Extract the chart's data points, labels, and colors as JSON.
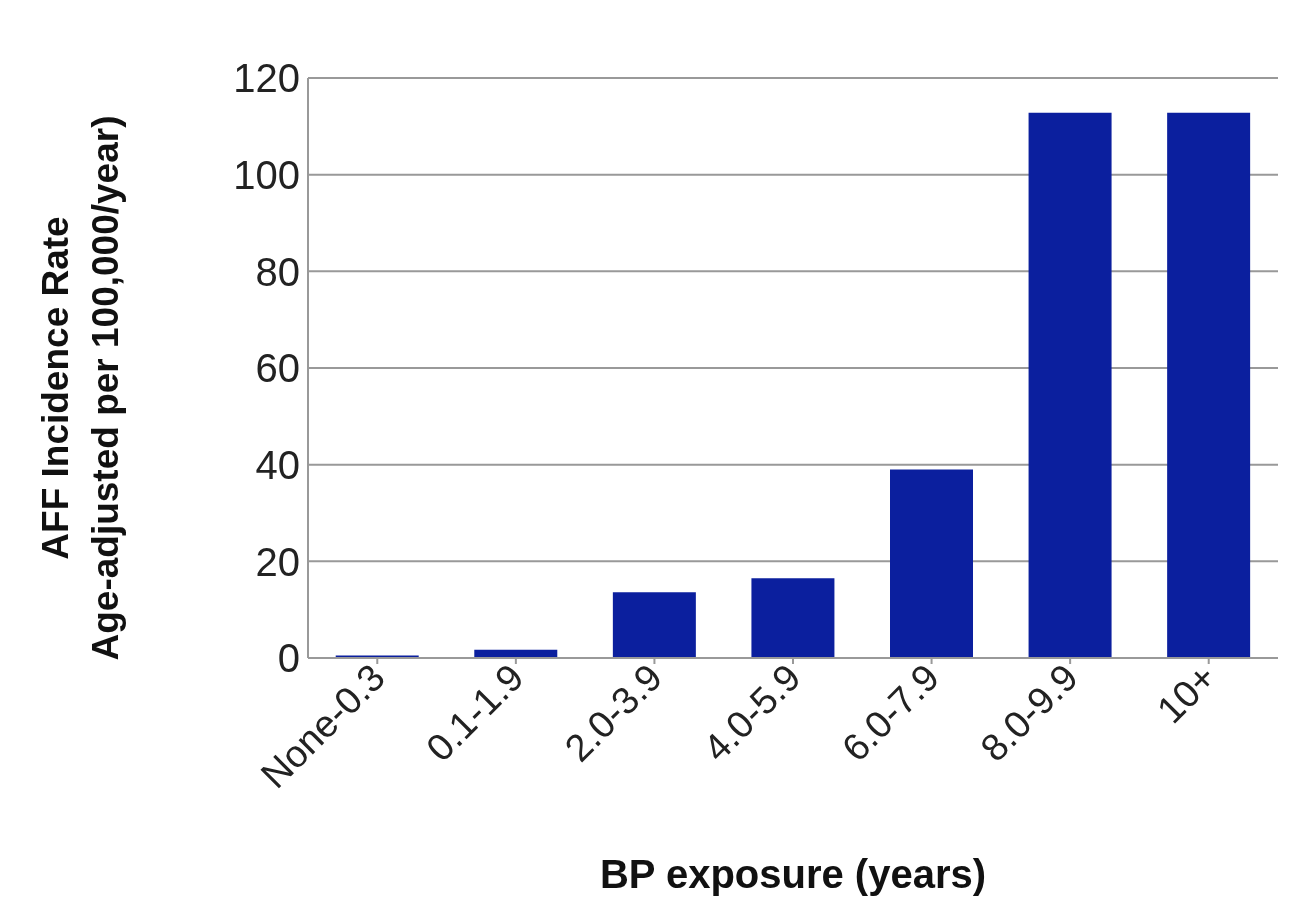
{
  "chart_data": {
    "type": "bar",
    "xlabel": "BP exposure (years)",
    "ylabel": "AFF Incidence Rate\nAge-adjusted per 100,000/year)",
    "categories": [
      "None-0.3",
      "0.1-1.9",
      "2.0-3.9",
      "4.0-5.9",
      "6.0-7.9",
      "8.0-9.9",
      "10+"
    ],
    "values": [
      0.5,
      1.7,
      13.6,
      16.5,
      39,
      112.8,
      112.8
    ],
    "color": "#0b1f9e",
    "ylim": [
      0,
      120
    ],
    "yticks": [
      0,
      20,
      40,
      60,
      80,
      100,
      120
    ],
    "grid": "y"
  }
}
